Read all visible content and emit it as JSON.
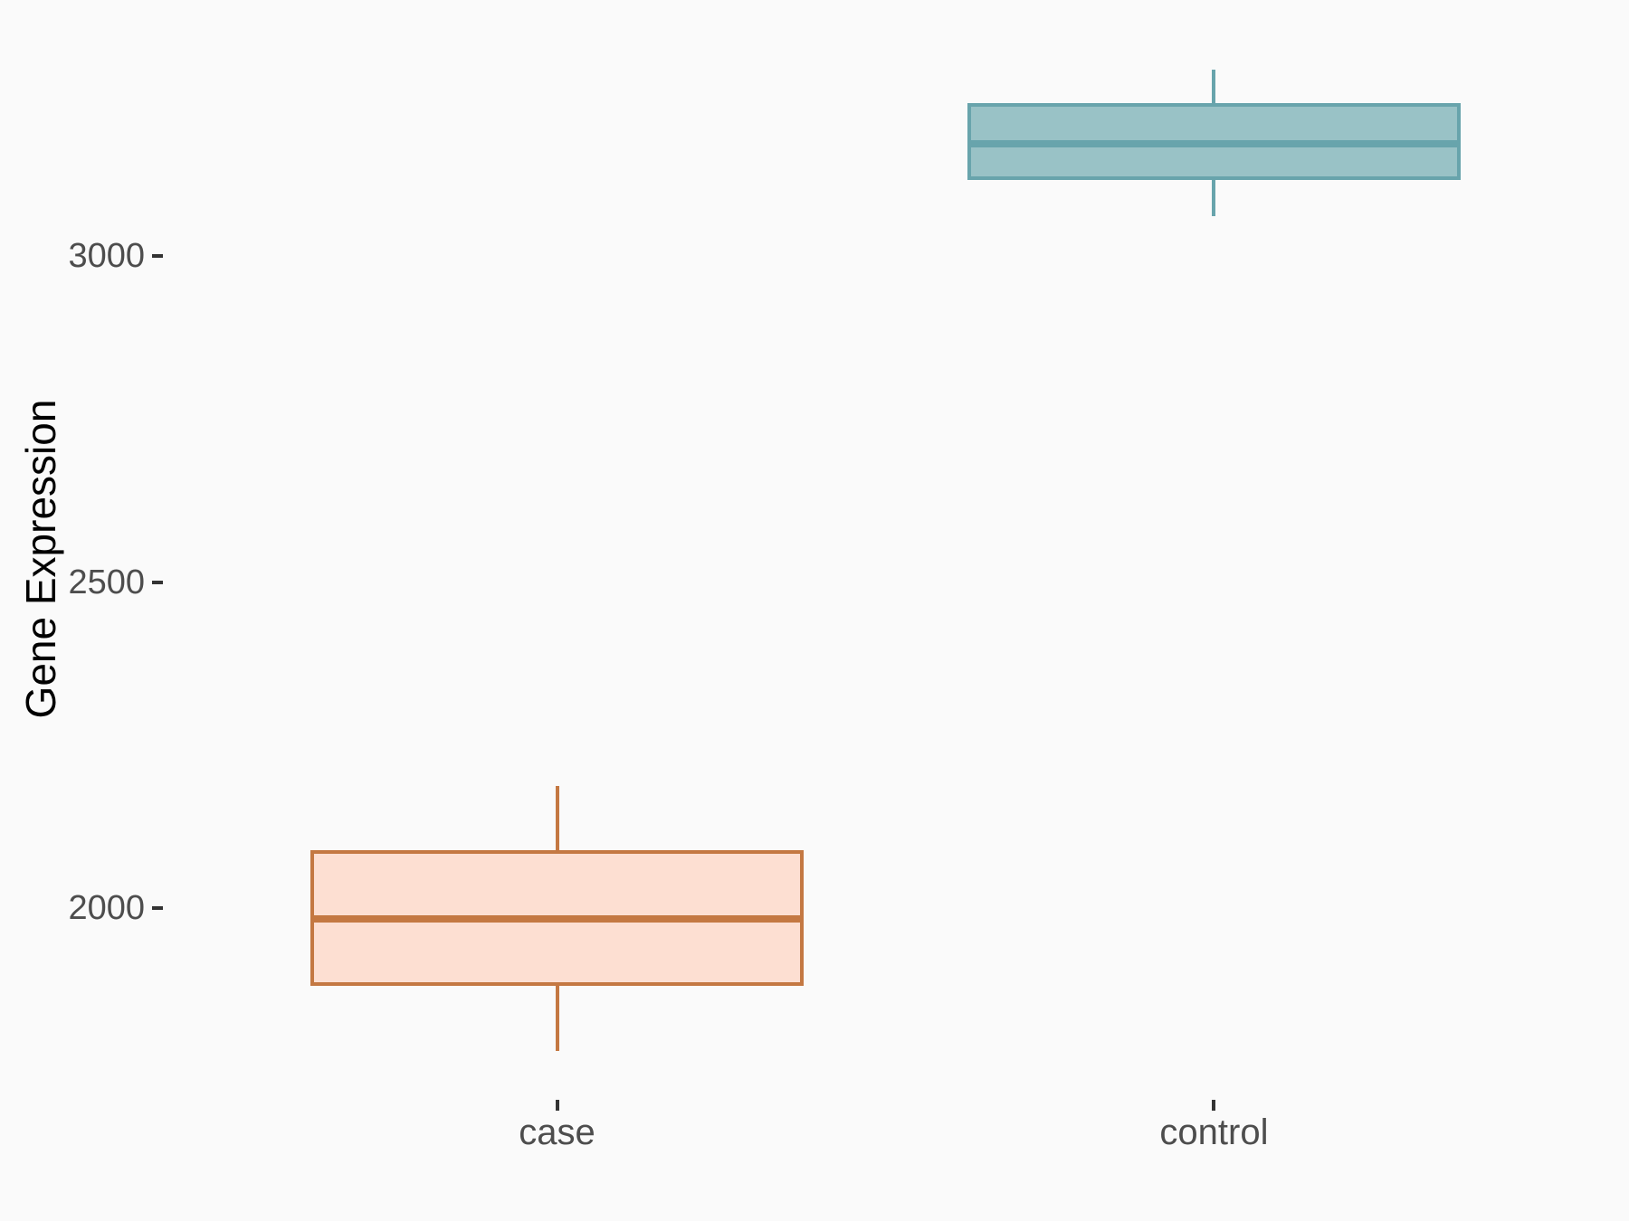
{
  "figure": {
    "background_color": "#FAFAFA",
    "axis_text_color": "#4D4D4D",
    "axis_title_color": "#000000",
    "tick_mark_color": "#333333"
  },
  "chart_data": {
    "type": "boxplot",
    "title": "",
    "xlabel": "",
    "ylabel": "Gene Expression",
    "categories": [
      "case",
      "control"
    ],
    "ylim": [
      1706,
      3361
    ],
    "y_ticks": [
      {
        "value": 2000,
        "label": "2000"
      },
      {
        "value": 2500,
        "label": "2500"
      },
      {
        "value": 3000,
        "label": "3000"
      }
    ],
    "grid": false,
    "legend": "none",
    "series": [
      {
        "name": "case",
        "min": 1781,
        "q1": 1884,
        "median": 1984,
        "q3": 2086,
        "max": 2187,
        "stroke_color": "#C47842",
        "fill_color": "#FDDFD2"
      },
      {
        "name": "control",
        "min": 3061,
        "q1": 3119,
        "median": 3173,
        "q3": 3232,
        "max": 3286,
        "stroke_color": "#68A4AC",
        "fill_color": "#99C2C6"
      }
    ]
  }
}
